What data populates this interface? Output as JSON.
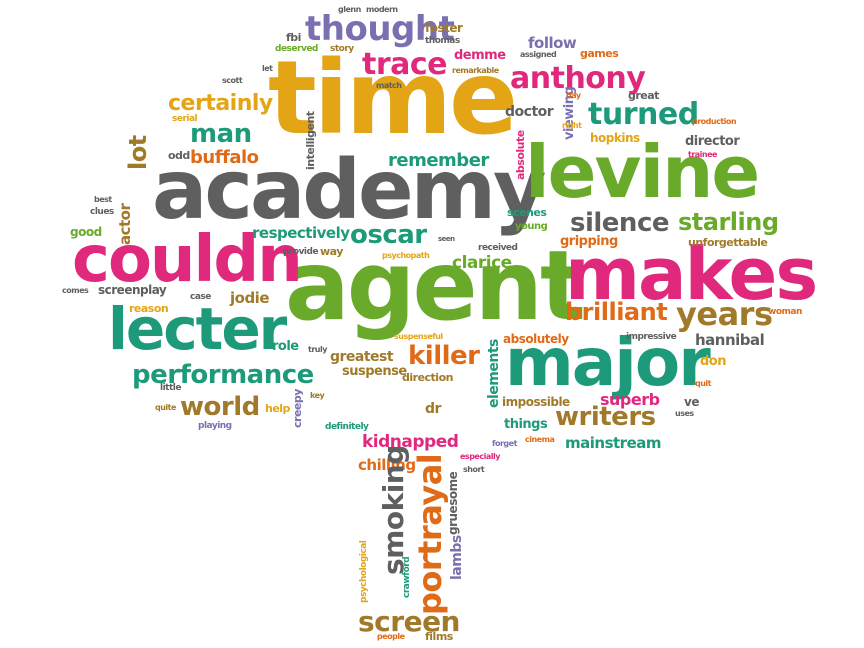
{
  "palette": {
    "pink": "#e0297d",
    "green": "#6aaa2a",
    "teal": "#1c9a7a",
    "gray": "#5f5f5f",
    "gold": "#e3a516",
    "orange": "#e06a16",
    "purple": "#7a6fb0",
    "brown": "#a07a2a"
  },
  "words": {
    "time": "time",
    "academy": "academy",
    "levine": "levine",
    "agent": "agent",
    "makes": "makes",
    "couldn": "couldn",
    "lecter": "lecter",
    "major": "major",
    "thought": "thought",
    "trace": "trace",
    "anthony": "anthony",
    "certainly": "certainly",
    "man": "man",
    "lot": "lot",
    "buffalo": "buffalo",
    "turned": "turned",
    "remember": "remember",
    "silence": "silence",
    "starling": "starling",
    "oscar": "oscar",
    "respectively": "respectively",
    "clarice": "clarice",
    "brilliant": "brilliant",
    "years": "years",
    "performance": "performance",
    "killer": "killer",
    "world": "world",
    "writers": "writers",
    "screenplay": "screenplay",
    "jodie": "jodie",
    "greatest": "greatest",
    "suspense": "suspense",
    "role": "role",
    "hannibal": "hannibal",
    "don": "don",
    "absolutely": "absolutely",
    "elements": "elements",
    "impossible": "impossible",
    "superb": "superb",
    "ve": "ve",
    "things": "things",
    "mainstream": "mainstream",
    "kidnapped": "kidnapped",
    "chilling": "chilling",
    "smoking": "smoking",
    "portrayal": "portrayal",
    "screen": "screen",
    "lambs": "lambs",
    "gruesome": "gruesome",
    "follow": "follow",
    "games": "games",
    "foster": "foster",
    "thomas": "thomas",
    "demme": "demme",
    "doctor": "doctor",
    "director": "director",
    "hopkins": "hopkins",
    "great": "great",
    "actor": "actor",
    "good": "good",
    "gripping": "gripping",
    "unforgettable": "unforgettable",
    "scenes": "scenes",
    "young": "young",
    "dr": "dr",
    "direction": "direction",
    "help": "help",
    "creepy": "creepy",
    "glenn": "glenn",
    "modern": "modern",
    "fbi": "fbi",
    "deserved": "deserved",
    "story": "story",
    "scott": "scott",
    "let": "let",
    "remarkable": "remarkable",
    "match": "match",
    "intelligent": "intelligent",
    "serial": "serial",
    "odd": "odd",
    "assigned": "assigned",
    "day": "day",
    "right": "right",
    "viewing": "viewing",
    "absolute": "absolute",
    "production": "production",
    "trainee": "trainee",
    "best": "best",
    "clues": "clues",
    "provide": "provide",
    "way": "way",
    "seen": "seen",
    "received": "received",
    "psychopath": "psychopath",
    "comes": "comes",
    "reason": "reason",
    "case": "case",
    "woman": "woman",
    "suspenseful": "suspenseful",
    "truly": "truly",
    "impressive": "impressive",
    "little": "little",
    "quite": "quite",
    "playing": "playing",
    "key": "key",
    "definitely": "definitely",
    "quit": "quit",
    "uses": "uses",
    "forget": "forget",
    "cinema": "cinema",
    "especially": "especially",
    "short": "short",
    "psychological": "psychological",
    "crawford": "crawford",
    "people": "people",
    "films": "films"
  }
}
